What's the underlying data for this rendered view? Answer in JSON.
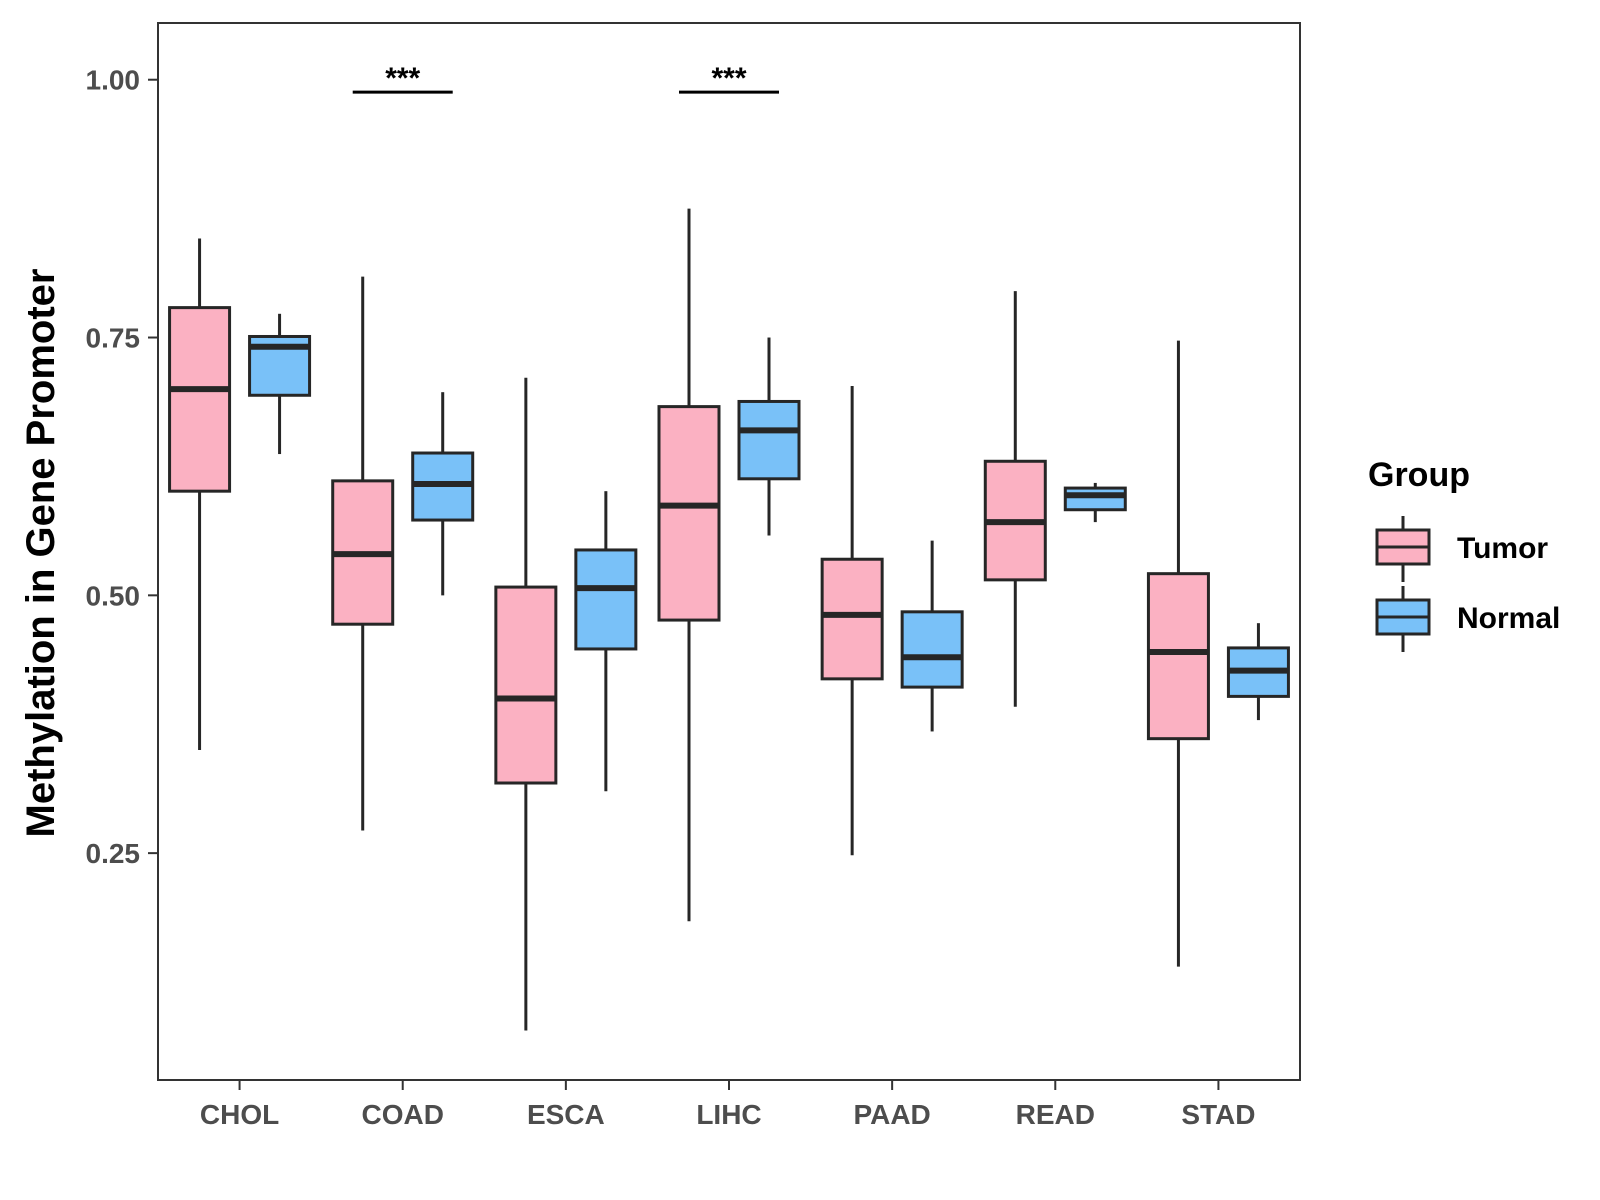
{
  "chart_data": {
    "type": "boxplot",
    "title": "",
    "xlabel": "",
    "ylabel": "Methylation in Gene Promoter",
    "ylim": [
      0.03,
      1.055
    ],
    "yticks": [
      0.25,
      0.5,
      0.75,
      1.0
    ],
    "ytick_labels": [
      "0.25",
      "0.50",
      "0.75",
      "1.00"
    ],
    "categories": [
      "CHOL",
      "COAD",
      "ESCA",
      "LIHC",
      "PAAD",
      "READ",
      "STAD"
    ],
    "legend": {
      "title": "Group",
      "position": "right",
      "entries": [
        {
          "name": "Tumor",
          "color": "#fbb1c2"
        },
        {
          "name": "Normal",
          "color": "#79c1f8"
        }
      ]
    },
    "series": [
      {
        "name": "Tumor",
        "color": "#fbb1c2",
        "boxes": [
          {
            "min": 0.35,
            "q1": 0.601,
            "median": 0.7,
            "q3": 0.779,
            "max": 0.846
          },
          {
            "min": 0.272,
            "q1": 0.472,
            "median": 0.54,
            "q3": 0.611,
            "max": 0.809
          },
          {
            "min": 0.078,
            "q1": 0.318,
            "median": 0.4,
            "q3": 0.508,
            "max": 0.711
          },
          {
            "min": 0.184,
            "q1": 0.476,
            "median": 0.587,
            "q3": 0.683,
            "max": 0.875
          },
          {
            "min": 0.248,
            "q1": 0.419,
            "median": 0.481,
            "q3": 0.535,
            "max": 0.703
          },
          {
            "min": 0.392,
            "q1": 0.515,
            "median": 0.571,
            "q3": 0.63,
            "max": 0.795
          },
          {
            "min": 0.14,
            "q1": 0.361,
            "median": 0.445,
            "q3": 0.521,
            "max": 0.747
          }
        ]
      },
      {
        "name": "Normal",
        "color": "#79c1f8",
        "boxes": [
          {
            "min": 0.637,
            "q1": 0.694,
            "median": 0.741,
            "q3": 0.751,
            "max": 0.773
          },
          {
            "min": 0.5,
            "q1": 0.573,
            "median": 0.608,
            "q3": 0.638,
            "max": 0.697
          },
          {
            "min": 0.31,
            "q1": 0.448,
            "median": 0.507,
            "q3": 0.544,
            "max": 0.601
          },
          {
            "min": 0.558,
            "q1": 0.613,
            "median": 0.66,
            "q3": 0.688,
            "max": 0.75
          },
          {
            "min": 0.368,
            "q1": 0.411,
            "median": 0.44,
            "q3": 0.484,
            "max": 0.553
          },
          {
            "min": 0.571,
            "q1": 0.583,
            "median": 0.597,
            "q3": 0.604,
            "max": 0.609
          },
          {
            "min": 0.379,
            "q1": 0.402,
            "median": 0.427,
            "q3": 0.449,
            "max": 0.473
          }
        ]
      }
    ],
    "annotations": [
      {
        "category": "COAD",
        "text": "***",
        "y": 0.988
      },
      {
        "category": "LIHC",
        "text": "***",
        "y": 0.988
      }
    ]
  }
}
